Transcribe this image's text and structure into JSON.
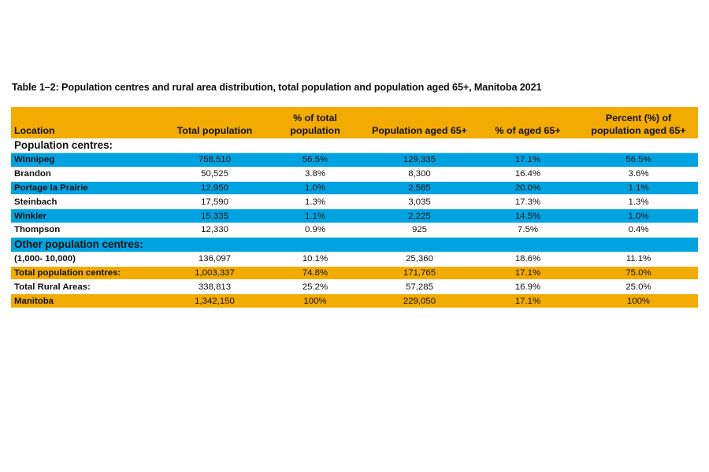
{
  "title": "Table 1–2: Population centres and rural area distribution, total population and population aged 65+, Manitoba 2021",
  "colors": {
    "header": "#f2ab00",
    "highlight_blue": "#00a3e0",
    "highlight_orange": "#f2ab00"
  },
  "headers": [
    "Location",
    "Total population",
    "% of total population",
    "Population aged 65+",
    "% of aged 65+",
    "Percent (%) of population aged 65+"
  ],
  "header_lines": [
    [
      "Location"
    ],
    [
      "Total population"
    ],
    [
      "% of total",
      "population"
    ],
    [
      "Population aged 65+"
    ],
    [
      "% of aged 65+"
    ],
    [
      "Percent (%) of",
      "population aged 65+"
    ]
  ],
  "rows": [
    {
      "style": "section white",
      "cells": [
        "Population centres:",
        "",
        "",
        "",
        "",
        ""
      ]
    },
    {
      "style": "blue",
      "cells": [
        "Winnipeg",
        "758,510",
        "56.5%",
        "129,335",
        "17.1%",
        "56.5%"
      ]
    },
    {
      "style": "white",
      "cells": [
        "Brandon",
        "50,525",
        "3.8%",
        "8,300",
        "16.4%",
        "3.6%"
      ]
    },
    {
      "style": "blue",
      "cells": [
        "Portage la Prairie",
        "12,950",
        "1.0%",
        "2,585",
        "20.0%",
        "1.1%"
      ]
    },
    {
      "style": "white",
      "cells": [
        "Steinbach",
        "17,590",
        "1.3%",
        "3,035",
        "17.3%",
        "1.3%"
      ]
    },
    {
      "style": "blue",
      "cells": [
        "Winkler",
        "15,335",
        "1.1%",
        "2,225",
        "14.5%",
        "1.0%"
      ]
    },
    {
      "style": "white",
      "cells": [
        "Thompson",
        "12,330",
        "0.9%",
        "925",
        "7.5%",
        "0.4%"
      ]
    },
    {
      "style": "section blue",
      "cells": [
        "Other population centres:",
        "",
        "",
        "",
        "",
        ""
      ]
    },
    {
      "style": "white",
      "cells": [
        "(1,000- 10,000)",
        "136,097",
        "10.1%",
        "25,360",
        "18.6%",
        "11.1%"
      ]
    },
    {
      "style": "orange",
      "cells": [
        "Total population centres:",
        "1,003,337",
        "74.8%",
        "171,765",
        "17.1%",
        "75.0%"
      ]
    },
    {
      "style": "white",
      "cells": [
        "Total Rural Areas:",
        "338,813",
        "25.2%",
        "57,285",
        "16.9%",
        "25.0%"
      ]
    },
    {
      "style": "orange",
      "cells": [
        "Manitoba",
        "1,342,150",
        "100%",
        "229,050",
        "17.1%",
        "100%"
      ]
    }
  ]
}
